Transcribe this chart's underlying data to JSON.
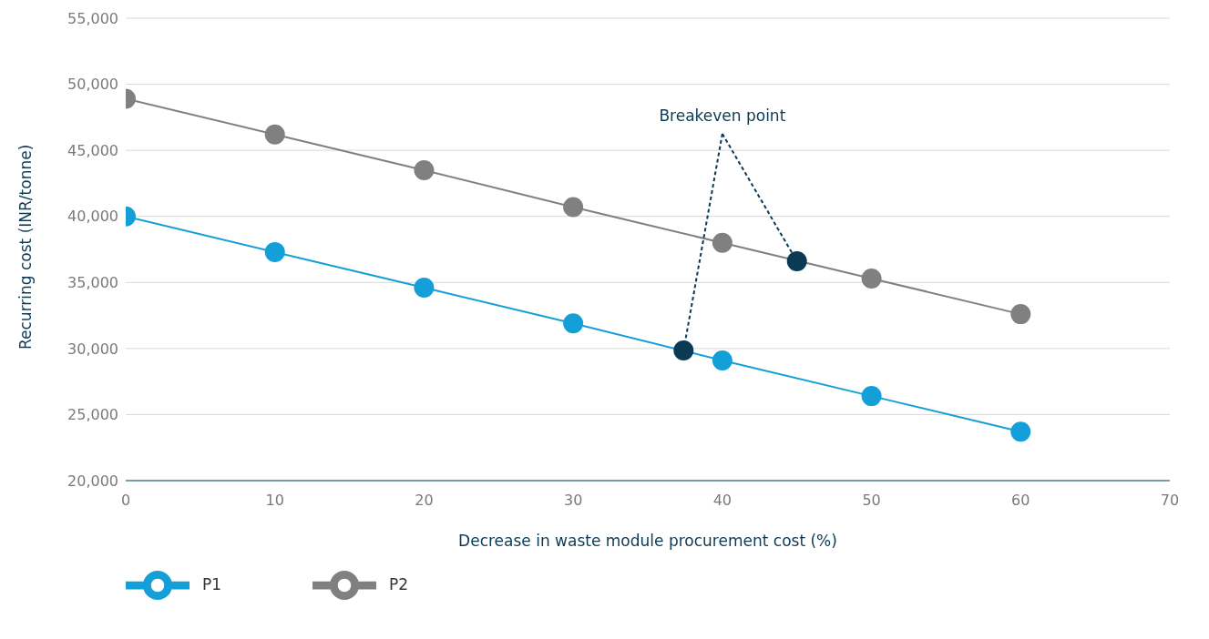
{
  "chart_data": {
    "type": "line",
    "xlabel": "Decrease in waste module procurement cost (%)",
    "ylabel": "Recurring cost (INR/tonne)",
    "x": [
      0,
      10,
      20,
      30,
      40,
      50,
      60
    ],
    "series": [
      {
        "name": "P1",
        "color": "#149fd8",
        "values": [
          40000,
          37300,
          34600,
          31900,
          29100,
          26400,
          23700
        ]
      },
      {
        "name": "P2",
        "color": "#808080",
        "values": [
          48900,
          46200,
          43500,
          40700,
          38000,
          35300,
          32600
        ]
      },
      {
        "type": "scatter",
        "color": "#0b3a55",
        "x": [
          37.4,
          45
        ],
        "values": [
          29850,
          36600
        ]
      }
    ],
    "annotations": [
      {
        "text": "Breakeven point",
        "x": 45,
        "y": 36600
      }
    ],
    "xlim": [
      0,
      70
    ],
    "xticks": [
      0,
      10,
      20,
      30,
      40,
      50,
      60,
      70
    ],
    "ylim": [
      20000,
      55000
    ],
    "yticks": [
      {
        "value": 20000,
        "label": "20,000"
      },
      {
        "value": 25000,
        "label": "25,000"
      },
      {
        "value": 30000,
        "label": "30,000"
      },
      {
        "value": 35000,
        "label": "35,000"
      },
      {
        "value": 40000,
        "label": "40,000"
      },
      {
        "value": 45000,
        "label": "45,000"
      },
      {
        "value": 50000,
        "label": "50,000"
      },
      {
        "value": 55000,
        "label": "55,000"
      }
    ],
    "grid": "y",
    "legend": "bottom left",
    "marker": "circle",
    "line_style": "solid"
  }
}
